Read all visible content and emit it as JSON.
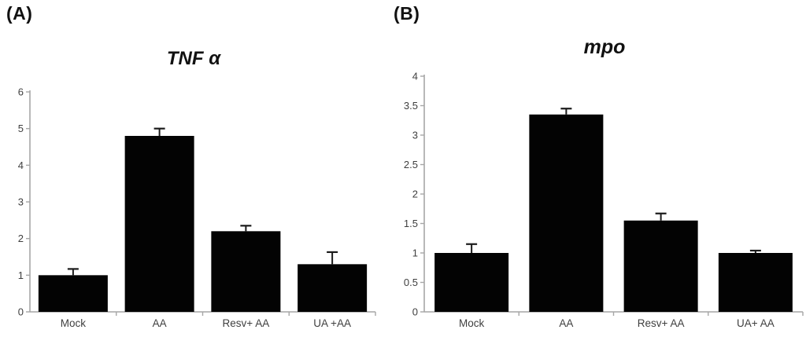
{
  "colors": {
    "bar": "#030303",
    "error_bar": "#1a1a1a",
    "axis": "#a6a6a6",
    "tick_text": "#3f3f3f",
    "title_text": "#111111",
    "background": "#ffffff"
  },
  "chart_data": [
    {
      "type": "bar",
      "panel_label": "(A)",
      "title": "TNF α",
      "categories": [
        "Mock",
        "AA",
        "Resv+ AA",
        "UA +AA"
      ],
      "values": [
        1.0,
        4.8,
        2.2,
        1.3
      ],
      "errors_upper": [
        0.17,
        0.2,
        0.15,
        0.33
      ],
      "ylim": [
        0,
        6
      ],
      "ytick_interval": 1,
      "ytick_labels": [
        "0",
        "1",
        "2",
        "3",
        "4",
        "5",
        "6"
      ],
      "xlabel": "",
      "ylabel": "",
      "grid": false,
      "legend": false,
      "error_bars": "upper whisker with cap"
    },
    {
      "type": "bar",
      "panel_label": "(B)",
      "title": "mpo",
      "categories": [
        "Mock",
        "AA",
        "Resv+ AA",
        "UA+ AA"
      ],
      "values": [
        1.0,
        3.35,
        1.55,
        1.0
      ],
      "errors_upper": [
        0.15,
        0.1,
        0.12,
        0.04
      ],
      "ylim": [
        0,
        4
      ],
      "ytick_interval": 0.5,
      "ytick_labels": [
        "0",
        "0.5",
        "1",
        "1.5",
        "2",
        "2.5",
        "3",
        "3.5",
        "4"
      ],
      "xlabel": "",
      "ylabel": "",
      "grid": false,
      "legend": false,
      "error_bars": "upper whisker with cap"
    }
  ]
}
